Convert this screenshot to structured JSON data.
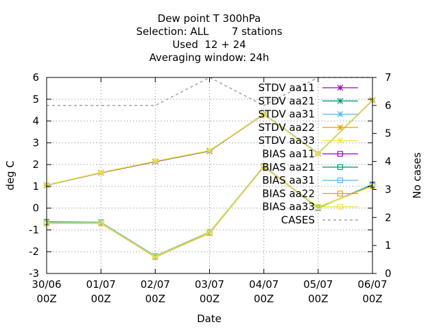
{
  "chart_data": {
    "type": "line",
    "title_lines": [
      "Dew point T 300hPa",
      "Selection: ALL       7 stations",
      "Used  12 + 24",
      "Averaging window: 24h"
    ],
    "xlabel": "Date",
    "ylabel": "deg C",
    "y2label": "No cases",
    "x_ticks": [
      {
        "top": "30/06",
        "bottom": "00Z"
      },
      {
        "top": "01/07",
        "bottom": "00Z"
      },
      {
        "top": "02/07",
        "bottom": "00Z"
      },
      {
        "top": "03/07",
        "bottom": "00Z"
      },
      {
        "top": "04/07",
        "bottom": "00Z"
      },
      {
        "top": "05/07",
        "bottom": "00Z"
      },
      {
        "top": "06/07",
        "bottom": "00Z"
      }
    ],
    "ylim": [
      -3,
      6
    ],
    "y_ticks": [
      "-3",
      "-2",
      "-1",
      "0",
      "1",
      "2",
      "3",
      "4",
      "5",
      "6"
    ],
    "y2lim": [
      0,
      7
    ],
    "y2_ticks": [
      "0",
      "1",
      "2",
      "3",
      "4",
      "5",
      "6",
      "7"
    ],
    "grid": true,
    "legend_position": "top-right",
    "series": [
      {
        "name": "STDV aa11",
        "color": "#9400d3",
        "marker": "star",
        "axis": "y",
        "values": [
          1.05,
          1.62,
          2.13,
          2.62,
          4.3,
          2.5,
          4.95
        ]
      },
      {
        "name": "STDV aa21",
        "color": "#009e73",
        "marker": "star",
        "axis": "y",
        "values": [
          1.05,
          1.63,
          2.14,
          2.63,
          4.32,
          2.51,
          4.96
        ]
      },
      {
        "name": "STDV aa31",
        "color": "#56b4e9",
        "marker": "star",
        "axis": "y",
        "values": [
          1.06,
          1.64,
          2.15,
          2.64,
          4.33,
          2.52,
          4.97
        ]
      },
      {
        "name": "STDV aa22",
        "color": "#e69f00",
        "marker": "star",
        "axis": "y",
        "values": [
          1.06,
          1.63,
          2.15,
          2.64,
          4.3,
          2.49,
          4.96
        ]
      },
      {
        "name": "STDV aa33",
        "color": "#f0e442",
        "marker": "star",
        "axis": "y",
        "values": [
          1.07,
          1.64,
          2.16,
          2.65,
          4.31,
          2.5,
          4.97
        ]
      },
      {
        "name": "BIAS aa11",
        "color": "#9400d3",
        "marker": "square",
        "axis": "y",
        "values": [
          -0.65,
          -0.68,
          -2.22,
          -1.12,
          1.92,
          0.02,
          1.05
        ]
      },
      {
        "name": "BIAS aa21",
        "color": "#009e73",
        "marker": "square",
        "axis": "y",
        "values": [
          -0.63,
          -0.65,
          -2.2,
          -1.1,
          1.9,
          0.0,
          1.08
        ]
      },
      {
        "name": "BIAS aa31",
        "color": "#56b4e9",
        "marker": "square",
        "axis": "y",
        "values": [
          -0.66,
          -0.66,
          -2.21,
          -1.11,
          1.91,
          0.01,
          1.1
        ]
      },
      {
        "name": "BIAS aa22",
        "color": "#e69f00",
        "marker": "square",
        "axis": "y",
        "values": [
          -0.7,
          -0.7,
          -2.25,
          -1.15,
          1.88,
          0.05,
          1.02
        ]
      },
      {
        "name": "BIAS aa33",
        "color": "#f0e442",
        "marker": "square",
        "axis": "y",
        "values": [
          -0.68,
          -0.68,
          -2.23,
          -1.12,
          1.89,
          0.04,
          1.0
        ]
      },
      {
        "name": "CASES",
        "color": "#a0a0a0",
        "marker": "none",
        "dash": true,
        "axis": "y2",
        "values": [
          6,
          6,
          6,
          7,
          6,
          7,
          7
        ]
      }
    ]
  }
}
